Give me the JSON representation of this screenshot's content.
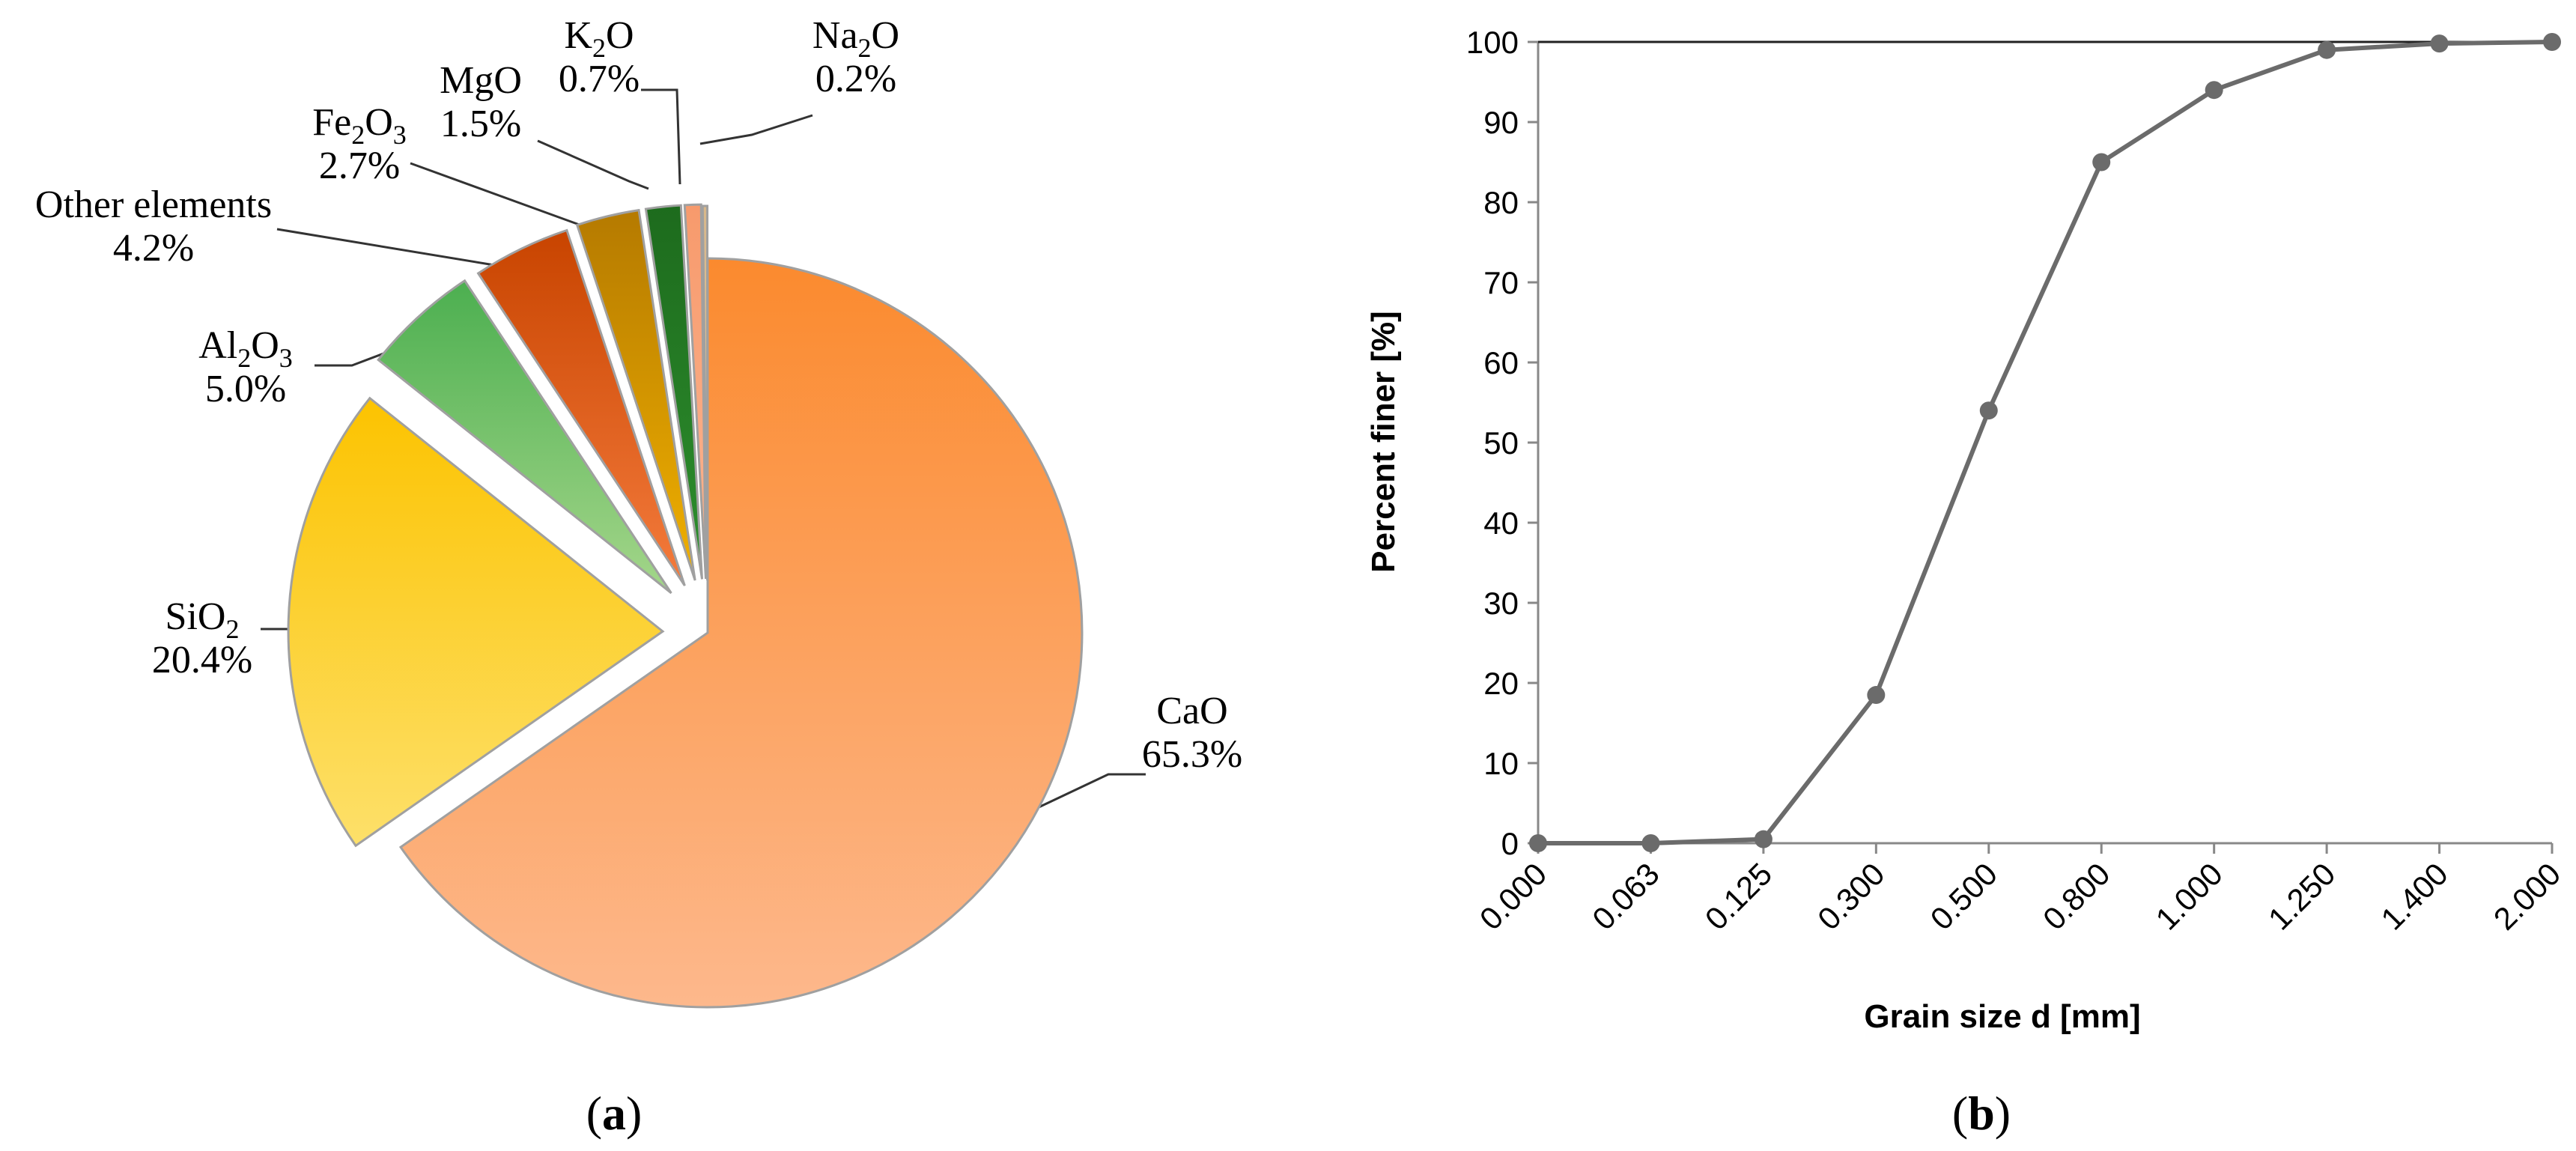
{
  "chart_data": [
    {
      "type": "pie",
      "panel_label": "(a)",
      "panel_letter": "a",
      "slices": [
        {
          "name": "CaO",
          "value": 65.3,
          "label": "65.3%",
          "color_top": "#fb8a2e",
          "color_bottom": "#fdb88c"
        },
        {
          "name": "SiO2",
          "value": 20.4,
          "label": "20.4%",
          "color_top": "#fcc300",
          "color_bottom": "#fde06a"
        },
        {
          "name": "Al2O3",
          "value": 5.0,
          "label": "5.0%",
          "color_top": "#4caf50",
          "color_bottom": "#a4d68a"
        },
        {
          "name": "Other elements",
          "value": 4.2,
          "label": "4.2%",
          "color_top": "#c84400",
          "color_bottom": "#f47b3c"
        },
        {
          "name": "Fe2O3",
          "value": 2.7,
          "label": "2.7%",
          "color_top": "#b57a00",
          "color_bottom": "#f0b000"
        },
        {
          "name": "MgO",
          "value": 1.5,
          "label": "1.5%",
          "color_top": "#1d6b1d",
          "color_bottom": "#2e8f2e"
        },
        {
          "name": "K2O",
          "value": 0.7,
          "label": "0.7%",
          "color_top": "#f79a6c",
          "color_bottom": "#fbb592"
        },
        {
          "name": "Na2O",
          "value": 0.2,
          "label": "0.2%",
          "color_top": "#d8b78a",
          "color_bottom": "#e6cfa8"
        }
      ]
    },
    {
      "type": "line",
      "panel_label": "(b)",
      "panel_letter": "b",
      "xlabel": "Grain size d [mm]",
      "ylabel": "Percent finer [%]",
      "categories": [
        "0.000",
        "0.063",
        "0.125",
        "0.300",
        "0.500",
        "0.800",
        "1.000",
        "1.250",
        "1.400",
        "2.000"
      ],
      "series": [
        {
          "values": [
            0,
            0,
            0.5,
            18.5,
            54,
            85,
            94,
            99,
            99.8,
            100
          ]
        }
      ],
      "ylim": [
        0,
        100
      ],
      "yticks": [
        0,
        10,
        20,
        30,
        40,
        50,
        60,
        70,
        80,
        90,
        100
      ],
      "grid": false,
      "line_color": "#6b6b6b"
    }
  ]
}
